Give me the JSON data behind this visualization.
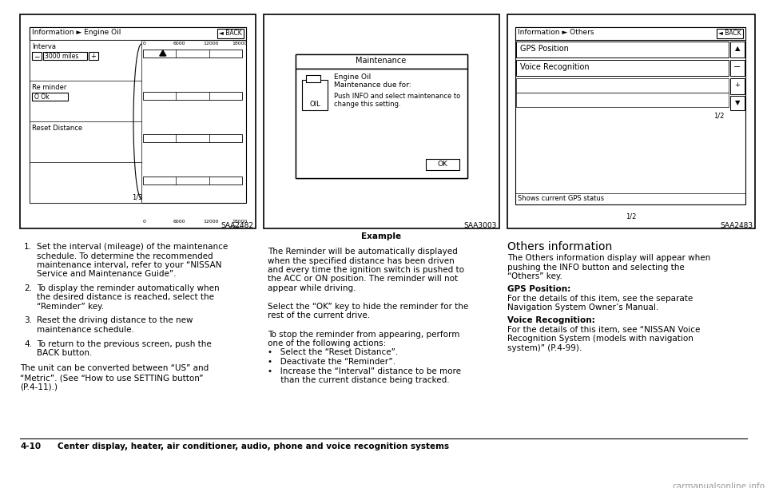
{
  "page_num": "4-10",
  "footer_text": "Center display, heater, air conditioner, audio, phone and voice recognition systems",
  "bg_color": "#ffffff",
  "panel1": {
    "label": "SAA2482",
    "title": "Information ► Engine Oil",
    "back_btn": "BACK",
    "page_indicator": "1/3",
    "interval_label": "Interva",
    "interval_value": "3000 miles",
    "reminder_label": "Re minder",
    "reminder_value": "O Ok",
    "reset_label": "Reset Distance"
  },
  "panel2": {
    "label": "SAA3003",
    "caption": "Example",
    "dialog_title": "Maintenance",
    "line1": "Engine Oil",
    "line2": "Maintenance due for:",
    "line3": "Push INFO and select maintenance to",
    "line4": "change this setting.",
    "ok_btn": "OK",
    "oil_label": "OIL"
  },
  "panel3": {
    "label": "SAA2483",
    "title": "Information ► Others",
    "back_btn": "BACK",
    "page_indicator": "1/2",
    "item1": "GPS Position",
    "item2": "Voice Recognition",
    "status_bar": "Shows current GPS status"
  },
  "numbered_items": [
    "Set the interval (mileage) of the maintenance\nschedule. To determine the recommended\nmaintenance interval, refer to your “NISSAN\nService and Maintenance Guide”.",
    "To display the reminder automatically when\nthe desired distance is reached, select the\n“Reminder” key.",
    "Reset the driving distance to the new\nmaintenance schedule.",
    "To return to the previous screen, push the\nBACK button."
  ],
  "unit_note": "The unit can be converted between “US” and\n“Metric”. (See “How to use SETTING button”\n(P.4-11).)",
  "middle_text_lines": [
    "The Reminder will be automatically displayed",
    "when the specified distance has been driven",
    "and every time the ignition switch is pushed to",
    "the ACC or ON position. The reminder will not",
    "appear while driving.",
    "",
    "Select the “OK” key to hide the reminder for the",
    "rest of the current drive.",
    "",
    "To stop the reminder from appearing, perform",
    "one of the following actions:",
    "•   Select the “Reset Distance”.",
    "•   Deactivate the “Reminder”.",
    "•   Increase the “Interval” distance to be more",
    "     than the current distance being tracked."
  ],
  "right_text_title": "Others information",
  "right_text_lines": [
    "The Others information display will appear when",
    "pushing the INFO button and selecting the",
    "“Others” key.",
    "",
    "GPS Position:",
    "For the details of this item, see the separate",
    "Navigation System Owner’s Manual.",
    "",
    "Voice Recognition:",
    "For the details of this item, see “NISSAN Voice",
    "Recognition System (models with navigation",
    "system)” (P.4-99)."
  ],
  "right_text_bold": [
    "GPS Position:",
    "Voice Recognition:"
  ]
}
